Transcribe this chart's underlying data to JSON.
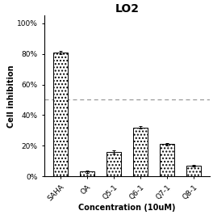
{
  "title": "LO2",
  "xlabel": "Concentration (10uM)",
  "ylabel": "Cell inhibition",
  "categories": [
    "SAHA",
    "OA",
    "Q5-1",
    "Q6-1",
    "Q7-1",
    "Q8-1"
  ],
  "values": [
    81,
    3,
    16,
    32,
    21,
    7
  ],
  "errors": [
    1.0,
    0.6,
    1.2,
    1.0,
    0.8,
    0.6
  ],
  "dashed_line_y": 50,
  "ylim": [
    0,
    105
  ],
  "yticks": [
    0,
    20,
    40,
    60,
    80,
    100
  ],
  "yticklabels": [
    "0%",
    "20%",
    "40%",
    "60%",
    "80%",
    "100%"
  ],
  "bar_color": "#ffffff",
  "bar_edgecolor": "#000000",
  "bar_hatch": "....",
  "dashed_line_color": "#999999",
  "title_fontsize": 10,
  "label_fontsize": 7,
  "tick_fontsize": 6.5,
  "bar_width": 0.55,
  "background_color": "#ffffff",
  "figsize": [
    2.64,
    2.66
  ],
  "dpi": 100
}
